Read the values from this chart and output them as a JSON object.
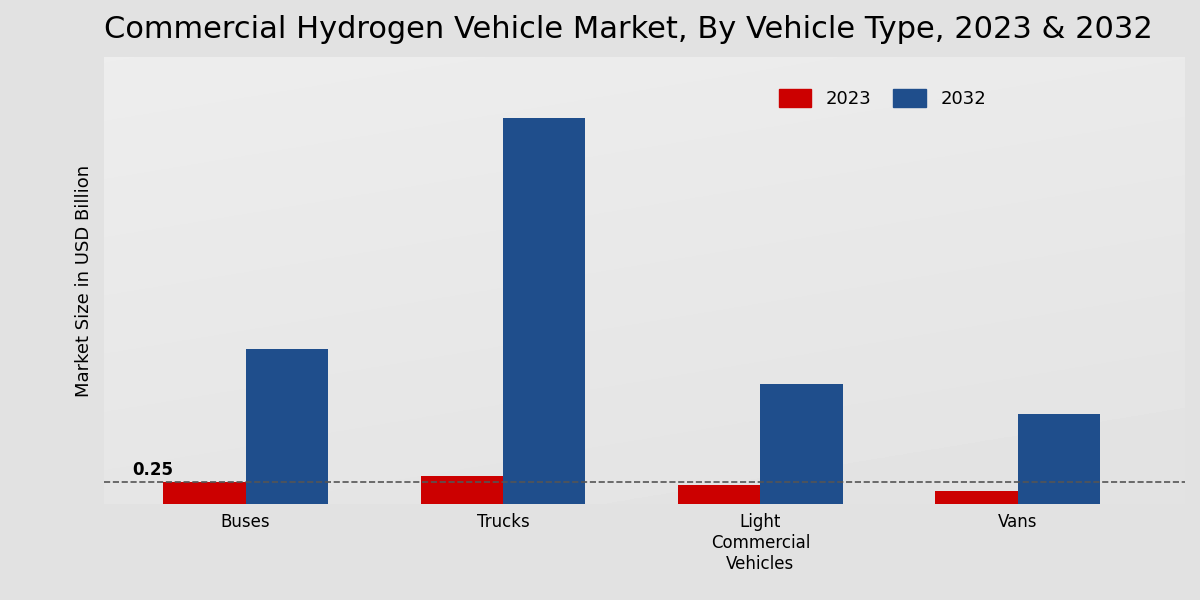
{
  "title": "Commercial Hydrogen Vehicle Market, By Vehicle Type, 2023 & 2032",
  "categories": [
    "Buses",
    "Trucks",
    "Light\nCommercial\nVehicles",
    "Vans"
  ],
  "values_2023": [
    0.25,
    0.32,
    0.22,
    0.15
  ],
  "values_2032": [
    1.8,
    4.5,
    1.4,
    1.05
  ],
  "color_2023": "#cc0000",
  "color_2032": "#1f4e8c",
  "ylabel": "Market Size in USD Billion",
  "annotation_text": "0.25",
  "dashed_line_y": 0.25,
  "bar_width": 0.32,
  "legend_labels": [
    "2023",
    "2032"
  ],
  "title_fontsize": 22,
  "axis_fontsize": 13,
  "tick_fontsize": 12,
  "ylim_max": 5.2,
  "xlim_min": -0.55,
  "xlim_max": 3.65
}
